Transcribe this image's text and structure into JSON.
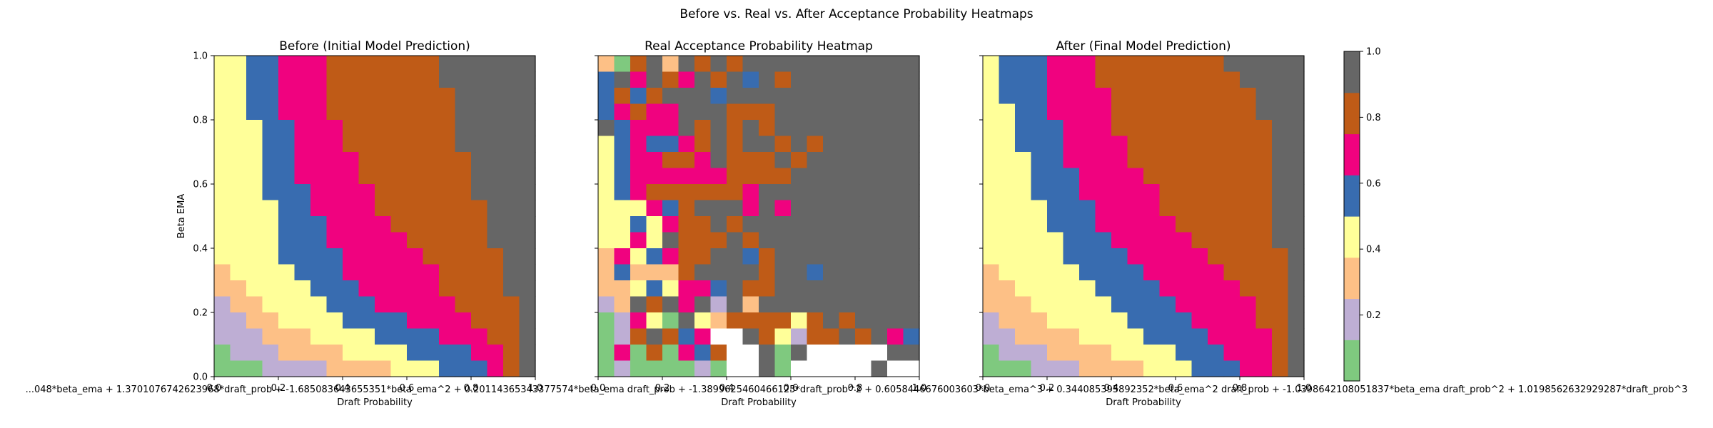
{
  "figure": {
    "suptitle": "Before vs. Real vs. After Acceptance Probability Heatmaps",
    "footer_text": "...048*beta_ema + 1.3701076742623968*draft_prob + -1.685083643655351*beta_ema^2 + 0.20114365343377574*beta_ema draft_prob + -1.3899625460466125*draft_prob^2 + 0.6058446676003603*beta_ema^3 + 0.344085395892352*beta_ema^2 draft_prob + -1.0398642108051837*beta_ema draft_prob^2 + 1.0198562632929287*draft_prob^3"
  },
  "chart_data": [
    {
      "type": "heatmap",
      "title": "Before (Initial Model Prediction)",
      "xlabel": "Draft Probability",
      "ylabel": "Beta EMA",
      "xlim": [
        0,
        1
      ],
      "ylim": [
        0,
        1
      ],
      "x_ticks": [
        "0.0",
        "0.2",
        "0.4",
        "0.6",
        "0.8",
        "1.0"
      ],
      "y_ticks": [
        "0.0",
        "0.2",
        "0.4",
        "0.6",
        "0.8",
        "1.0"
      ],
      "grid": false,
      "bins": 20,
      "values_top_to_bottom": [
        [
          3,
          3,
          4,
          4,
          5,
          5,
          5,
          6,
          6,
          6,
          6,
          6,
          6,
          6,
          7,
          7,
          7,
          7,
          7,
          7
        ],
        [
          3,
          3,
          4,
          4,
          5,
          5,
          5,
          6,
          6,
          6,
          6,
          6,
          6,
          6,
          7,
          7,
          7,
          7,
          7,
          7
        ],
        [
          3,
          3,
          4,
          4,
          5,
          5,
          5,
          6,
          6,
          6,
          6,
          6,
          6,
          6,
          6,
          7,
          7,
          7,
          7,
          7
        ],
        [
          3,
          3,
          4,
          4,
          5,
          5,
          5,
          6,
          6,
          6,
          6,
          6,
          6,
          6,
          6,
          7,
          7,
          7,
          7,
          7
        ],
        [
          3,
          3,
          3,
          4,
          4,
          5,
          5,
          5,
          6,
          6,
          6,
          6,
          6,
          6,
          6,
          7,
          7,
          7,
          7,
          7
        ],
        [
          3,
          3,
          3,
          4,
          4,
          5,
          5,
          5,
          6,
          6,
          6,
          6,
          6,
          6,
          6,
          7,
          7,
          7,
          7,
          7
        ],
        [
          3,
          3,
          3,
          4,
          4,
          5,
          5,
          5,
          5,
          6,
          6,
          6,
          6,
          6,
          6,
          6,
          7,
          7,
          7,
          7
        ],
        [
          3,
          3,
          3,
          4,
          4,
          5,
          5,
          5,
          5,
          6,
          6,
          6,
          6,
          6,
          6,
          6,
          7,
          7,
          7,
          7
        ],
        [
          3,
          3,
          3,
          4,
          4,
          4,
          5,
          5,
          5,
          5,
          6,
          6,
          6,
          6,
          6,
          6,
          7,
          7,
          7,
          7
        ],
        [
          3,
          3,
          3,
          3,
          4,
          4,
          5,
          5,
          5,
          5,
          6,
          6,
          6,
          6,
          6,
          6,
          6,
          7,
          7,
          7
        ],
        [
          3,
          3,
          3,
          3,
          4,
          4,
          4,
          5,
          5,
          5,
          5,
          6,
          6,
          6,
          6,
          6,
          6,
          7,
          7,
          7
        ],
        [
          3,
          3,
          3,
          3,
          4,
          4,
          4,
          5,
          5,
          5,
          5,
          5,
          6,
          6,
          6,
          6,
          6,
          7,
          7,
          7
        ],
        [
          3,
          3,
          3,
          3,
          4,
          4,
          4,
          4,
          5,
          5,
          5,
          5,
          5,
          6,
          6,
          6,
          6,
          6,
          7,
          7
        ],
        [
          2,
          3,
          3,
          3,
          3,
          4,
          4,
          4,
          5,
          5,
          5,
          5,
          5,
          5,
          6,
          6,
          6,
          6,
          7,
          7
        ],
        [
          2,
          2,
          3,
          3,
          3,
          3,
          4,
          4,
          4,
          5,
          5,
          5,
          5,
          5,
          6,
          6,
          6,
          6,
          7,
          7
        ],
        [
          1,
          2,
          2,
          3,
          3,
          3,
          3,
          4,
          4,
          4,
          5,
          5,
          5,
          5,
          5,
          6,
          6,
          6,
          6,
          7
        ],
        [
          1,
          1,
          2,
          2,
          3,
          3,
          3,
          3,
          4,
          4,
          4,
          4,
          5,
          5,
          5,
          5,
          6,
          6,
          6,
          7
        ],
        [
          1,
          1,
          1,
          2,
          2,
          2,
          3,
          3,
          3,
          3,
          4,
          4,
          4,
          4,
          5,
          5,
          5,
          6,
          6,
          7
        ],
        [
          0,
          1,
          1,
          1,
          2,
          2,
          2,
          2,
          3,
          3,
          3,
          3,
          4,
          4,
          4,
          4,
          5,
          5,
          6,
          7
        ],
        [
          0,
          0,
          0,
          1,
          1,
          1,
          1,
          2,
          2,
          2,
          2,
          3,
          3,
          3,
          4,
          4,
          4,
          5,
          6,
          7
        ]
      ]
    },
    {
      "type": "heatmap",
      "title": "Real Acceptance Probability Heatmap",
      "xlabel": "Draft Probability",
      "ylabel": "",
      "xlim": [
        0,
        1
      ],
      "ylim": [
        0,
        1
      ],
      "x_ticks": [
        "0.0",
        "0.2",
        "0.4",
        "0.6",
        "0.8",
        "1.0"
      ],
      "y_ticks": [],
      "grid": false,
      "bins": 20,
      "missing_value": -1,
      "values_top_to_bottom": [
        [
          2,
          0,
          6,
          7,
          2,
          7,
          6,
          7,
          6,
          7,
          7,
          7,
          7,
          7,
          7,
          7,
          7,
          7,
          7,
          7
        ],
        [
          4,
          7,
          5,
          7,
          6,
          5,
          7,
          6,
          7,
          4,
          7,
          6,
          7,
          7,
          7,
          7,
          7,
          7,
          7,
          7
        ],
        [
          4,
          6,
          4,
          6,
          7,
          7,
          7,
          4,
          7,
          7,
          7,
          7,
          7,
          7,
          7,
          7,
          7,
          7,
          7,
          7
        ],
        [
          4,
          5,
          6,
          5,
          5,
          7,
          7,
          7,
          6,
          6,
          6,
          7,
          7,
          7,
          7,
          7,
          7,
          7,
          7,
          7
        ],
        [
          7,
          4,
          5,
          5,
          5,
          7,
          6,
          7,
          6,
          7,
          6,
          7,
          7,
          7,
          7,
          7,
          7,
          7,
          7,
          7
        ],
        [
          3,
          4,
          5,
          4,
          4,
          5,
          6,
          7,
          6,
          7,
          7,
          6,
          7,
          6,
          7,
          7,
          7,
          7,
          7,
          7
        ],
        [
          3,
          4,
          5,
          5,
          6,
          6,
          5,
          7,
          6,
          6,
          6,
          7,
          6,
          7,
          7,
          7,
          7,
          7,
          7,
          7
        ],
        [
          3,
          4,
          5,
          5,
          5,
          5,
          5,
          5,
          6,
          6,
          6,
          6,
          7,
          7,
          7,
          7,
          7,
          7,
          7,
          7
        ],
        [
          3,
          4,
          5,
          6,
          6,
          6,
          6,
          6,
          6,
          5,
          7,
          7,
          7,
          7,
          7,
          7,
          7,
          7,
          7,
          7
        ],
        [
          3,
          3,
          3,
          5,
          4,
          6,
          7,
          7,
          7,
          5,
          7,
          5,
          7,
          7,
          7,
          7,
          7,
          7,
          7,
          7
        ],
        [
          3,
          3,
          4,
          3,
          5,
          6,
          6,
          7,
          6,
          7,
          7,
          7,
          7,
          7,
          7,
          7,
          7,
          7,
          7,
          7
        ],
        [
          3,
          3,
          5,
          3,
          7,
          6,
          6,
          6,
          7,
          6,
          7,
          7,
          7,
          7,
          7,
          7,
          7,
          7,
          7,
          7
        ],
        [
          2,
          5,
          3,
          4,
          5,
          6,
          6,
          7,
          7,
          4,
          6,
          7,
          7,
          7,
          7,
          7,
          7,
          7,
          7,
          7
        ],
        [
          2,
          4,
          2,
          2,
          2,
          6,
          7,
          7,
          7,
          7,
          6,
          7,
          7,
          4,
          7,
          7,
          7,
          7,
          7,
          7
        ],
        [
          2,
          2,
          3,
          4,
          3,
          5,
          5,
          4,
          7,
          6,
          6,
          7,
          7,
          7,
          7,
          7,
          7,
          7,
          7,
          7
        ],
        [
          1,
          2,
          7,
          6,
          7,
          5,
          7,
          1,
          7,
          2,
          7,
          7,
          7,
          7,
          7,
          7,
          7,
          7,
          7,
          7
        ],
        [
          0,
          1,
          5,
          3,
          0,
          7,
          3,
          2,
          6,
          6,
          6,
          6,
          3,
          6,
          7,
          6,
          7,
          7,
          7,
          7
        ],
        [
          0,
          1,
          6,
          7,
          6,
          4,
          5,
          -1,
          -1,
          7,
          6,
          3,
          1,
          6,
          6,
          7,
          6,
          7,
          5,
          4
        ],
        [
          0,
          5,
          0,
          6,
          0,
          5,
          4,
          6,
          -1,
          -1,
          7,
          0,
          7,
          -1,
          -1,
          -1,
          -1,
          -1,
          7,
          7
        ],
        [
          0,
          1,
          0,
          0,
          0,
          0,
          1,
          0,
          -1,
          -1,
          7,
          0,
          -1,
          -1,
          -1,
          -1,
          -1,
          7,
          -1,
          -1
        ]
      ]
    },
    {
      "type": "heatmap",
      "title": "After (Final Model Prediction)",
      "xlabel": "Draft Probability",
      "ylabel": "",
      "xlim": [
        0,
        1
      ],
      "ylim": [
        0,
        1
      ],
      "x_ticks": [
        "0.0",
        "0.2",
        "0.4",
        "0.6",
        "0.8",
        "1.0"
      ],
      "y_ticks": [],
      "grid": false,
      "bins": 20,
      "values_top_to_bottom": [
        [
          3,
          4,
          4,
          4,
          5,
          5,
          5,
          6,
          6,
          6,
          6,
          6,
          6,
          6,
          6,
          7,
          7,
          7,
          7,
          7
        ],
        [
          3,
          4,
          4,
          4,
          5,
          5,
          5,
          6,
          6,
          6,
          6,
          6,
          6,
          6,
          6,
          6,
          7,
          7,
          7,
          7
        ],
        [
          3,
          4,
          4,
          4,
          5,
          5,
          5,
          5,
          6,
          6,
          6,
          6,
          6,
          6,
          6,
          6,
          6,
          7,
          7,
          7
        ],
        [
          3,
          3,
          4,
          4,
          5,
          5,
          5,
          5,
          6,
          6,
          6,
          6,
          6,
          6,
          6,
          6,
          6,
          7,
          7,
          7
        ],
        [
          3,
          3,
          4,
          4,
          4,
          5,
          5,
          5,
          6,
          6,
          6,
          6,
          6,
          6,
          6,
          6,
          6,
          6,
          7,
          7
        ],
        [
          3,
          3,
          4,
          4,
          4,
          5,
          5,
          5,
          5,
          6,
          6,
          6,
          6,
          6,
          6,
          6,
          6,
          6,
          7,
          7
        ],
        [
          3,
          3,
          3,
          4,
          4,
          5,
          5,
          5,
          5,
          6,
          6,
          6,
          6,
          6,
          6,
          6,
          6,
          6,
          7,
          7
        ],
        [
          3,
          3,
          3,
          4,
          4,
          4,
          5,
          5,
          5,
          5,
          6,
          6,
          6,
          6,
          6,
          6,
          6,
          6,
          7,
          7
        ],
        [
          3,
          3,
          3,
          4,
          4,
          4,
          5,
          5,
          5,
          5,
          5,
          6,
          6,
          6,
          6,
          6,
          6,
          6,
          7,
          7
        ],
        [
          3,
          3,
          3,
          3,
          4,
          4,
          4,
          5,
          5,
          5,
          5,
          6,
          6,
          6,
          6,
          6,
          6,
          6,
          7,
          7
        ],
        [
          3,
          3,
          3,
          3,
          4,
          4,
          4,
          5,
          5,
          5,
          5,
          5,
          6,
          6,
          6,
          6,
          6,
          6,
          7,
          7
        ],
        [
          3,
          3,
          3,
          3,
          3,
          4,
          4,
          4,
          5,
          5,
          5,
          5,
          5,
          6,
          6,
          6,
          6,
          6,
          7,
          7
        ],
        [
          3,
          3,
          3,
          3,
          3,
          4,
          4,
          4,
          4,
          5,
          5,
          5,
          5,
          5,
          6,
          6,
          6,
          6,
          6,
          7
        ],
        [
          2,
          3,
          3,
          3,
          3,
          3,
          4,
          4,
          4,
          4,
          5,
          5,
          5,
          5,
          5,
          6,
          6,
          6,
          6,
          7
        ],
        [
          2,
          2,
          3,
          3,
          3,
          3,
          3,
          4,
          4,
          4,
          4,
          5,
          5,
          5,
          5,
          5,
          6,
          6,
          6,
          7
        ],
        [
          2,
          2,
          2,
          3,
          3,
          3,
          3,
          3,
          4,
          4,
          4,
          4,
          5,
          5,
          5,
          5,
          5,
          6,
          6,
          7
        ],
        [
          1,
          2,
          2,
          2,
          3,
          3,
          3,
          3,
          3,
          4,
          4,
          4,
          4,
          5,
          5,
          5,
          5,
          6,
          6,
          7
        ],
        [
          1,
          1,
          2,
          2,
          2,
          2,
          3,
          3,
          3,
          3,
          4,
          4,
          4,
          4,
          5,
          5,
          5,
          5,
          6,
          7
        ],
        [
          0,
          1,
          1,
          1,
          2,
          2,
          2,
          2,
          3,
          3,
          3,
          3,
          4,
          4,
          4,
          5,
          5,
          5,
          6,
          7
        ],
        [
          0,
          0,
          0,
          1,
          1,
          1,
          2,
          2,
          2,
          2,
          3,
          3,
          3,
          4,
          4,
          4,
          5,
          5,
          6,
          7
        ]
      ]
    }
  ],
  "colorbar": {
    "type": "colorbar",
    "colors": [
      "#7fc97f",
      "#beaed4",
      "#fdc086",
      "#ffff99",
      "#386cb0",
      "#f0027f",
      "#bf5b17",
      "#666666"
    ],
    "missing_color": "#ffffff",
    "range": [
      0,
      1
    ],
    "ticks": [
      "0.2",
      "0.4",
      "0.6",
      "0.8",
      "1.0"
    ]
  }
}
